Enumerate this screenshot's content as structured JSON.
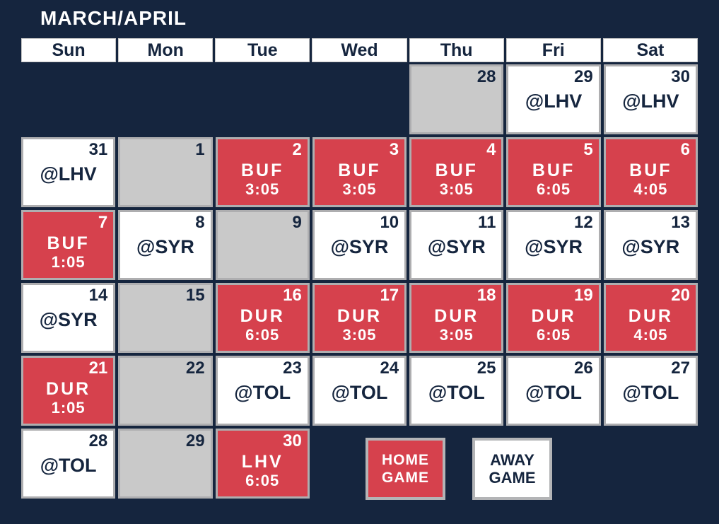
{
  "title": "MARCH/APRIL",
  "day_headers": [
    "Sun",
    "Mon",
    "Tue",
    "Wed",
    "Thu",
    "Fri",
    "Sat"
  ],
  "colors": {
    "background_navy": "#15253E",
    "home_red": "#D6414D",
    "off_day_gray": "#C9C9C9",
    "away_white": "#FFFFFF",
    "cell_border": "#AEAEB0"
  },
  "legend": {
    "home": {
      "line1": "HOME",
      "line2": "GAME"
    },
    "away": {
      "line1": "AWAY",
      "line2": "GAME"
    }
  },
  "weeks": [
    [
      {
        "type": "blank"
      },
      {
        "type": "blank"
      },
      {
        "type": "blank"
      },
      {
        "type": "blank"
      },
      {
        "type": "off",
        "date": "28"
      },
      {
        "type": "away",
        "date": "29",
        "opponent": "@LHV"
      },
      {
        "type": "away",
        "date": "30",
        "opponent": "@LHV"
      }
    ],
    [
      {
        "type": "away",
        "date": "31",
        "opponent": "@LHV"
      },
      {
        "type": "off",
        "date": "1"
      },
      {
        "type": "home",
        "date": "2",
        "team": "BUF",
        "time": "3:05"
      },
      {
        "type": "home",
        "date": "3",
        "team": "BUF",
        "time": "3:05"
      },
      {
        "type": "home",
        "date": "4",
        "team": "BUF",
        "time": "3:05"
      },
      {
        "type": "home",
        "date": "5",
        "team": "BUF",
        "time": "6:05"
      },
      {
        "type": "home",
        "date": "6",
        "team": "BUF",
        "time": "4:05"
      }
    ],
    [
      {
        "type": "home",
        "date": "7",
        "team": "BUF",
        "time": "1:05"
      },
      {
        "type": "away",
        "date": "8",
        "opponent": "@SYR"
      },
      {
        "type": "off",
        "date": "9"
      },
      {
        "type": "away",
        "date": "10",
        "opponent": "@SYR"
      },
      {
        "type": "away",
        "date": "11",
        "opponent": "@SYR"
      },
      {
        "type": "away",
        "date": "12",
        "opponent": "@SYR"
      },
      {
        "type": "away",
        "date": "13",
        "opponent": "@SYR"
      }
    ],
    [
      {
        "type": "away",
        "date": "14",
        "opponent": "@SYR"
      },
      {
        "type": "off",
        "date": "15"
      },
      {
        "type": "home",
        "date": "16",
        "team": "DUR",
        "time": "6:05"
      },
      {
        "type": "home",
        "date": "17",
        "team": "DUR",
        "time": "3:05"
      },
      {
        "type": "home",
        "date": "18",
        "team": "DUR",
        "time": "3:05"
      },
      {
        "type": "home",
        "date": "19",
        "team": "DUR",
        "time": "6:05"
      },
      {
        "type": "home",
        "date": "20",
        "team": "DUR",
        "time": "4:05"
      }
    ],
    [
      {
        "type": "home",
        "date": "21",
        "team": "DUR",
        "time": "1:05"
      },
      {
        "type": "off",
        "date": "22"
      },
      {
        "type": "away",
        "date": "23",
        "opponent": "@TOL"
      },
      {
        "type": "away",
        "date": "24",
        "opponent": "@TOL"
      },
      {
        "type": "away",
        "date": "25",
        "opponent": "@TOL"
      },
      {
        "type": "away",
        "date": "26",
        "opponent": "@TOL"
      },
      {
        "type": "away",
        "date": "27",
        "opponent": "@TOL"
      }
    ],
    [
      {
        "type": "away",
        "date": "28",
        "opponent": "@TOL"
      },
      {
        "type": "off",
        "date": "29"
      },
      {
        "type": "home",
        "date": "30",
        "team": "LHV",
        "time": "6:05"
      },
      {
        "type": "blank"
      },
      {
        "type": "blank"
      },
      {
        "type": "blank"
      },
      {
        "type": "blank"
      }
    ]
  ]
}
